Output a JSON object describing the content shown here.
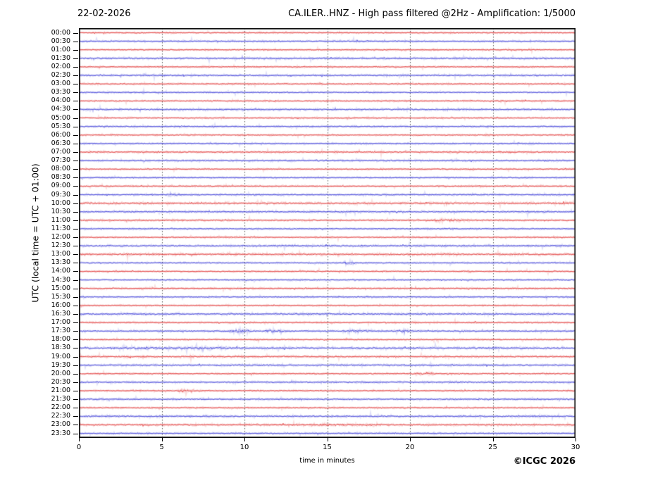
{
  "header": {
    "date": "22-02-2026",
    "title": "CA.ILER..HNZ - High pass filtered @2Hz - Amplification: 1/5000"
  },
  "footer": {
    "copyright": "©ICGC 2026"
  },
  "chart_data": {
    "type": "line",
    "subtype": "helicorder-daily-seismogram",
    "title": "CA.ILER..HNZ - High pass filtered @2Hz - Amplification: 1/5000",
    "date": "22-02-2026",
    "xlabel": "time in minutes",
    "ylabel": "UTC (local time = UTC + 01:00)",
    "x_range": [
      0,
      30
    ],
    "x_ticks": [
      0,
      5,
      10,
      15,
      20,
      25,
      30
    ],
    "grid": {
      "vertical_dotted_every_min": 5,
      "color": "#444444"
    },
    "legend": "none",
    "trace_colors": {
      "hour_rows": "#e03030",
      "half_hour_rows": "#3535d6"
    },
    "frame_color": "#000000",
    "rows": [
      {
        "t": "00:00",
        "color": "red",
        "noise": 1.0
      },
      {
        "t": "00:30",
        "color": "blue",
        "noise": 1.1
      },
      {
        "t": "01:00",
        "color": "red",
        "noise": 1.0
      },
      {
        "t": "01:30",
        "color": "blue",
        "noise": 1.3
      },
      {
        "t": "02:00",
        "color": "red",
        "noise": 1.0
      },
      {
        "t": "02:30",
        "color": "blue",
        "noise": 1.2
      },
      {
        "t": "03:00",
        "color": "red",
        "noise": 1.0
      },
      {
        "t": "03:30",
        "color": "blue",
        "noise": 1.0
      },
      {
        "t": "04:00",
        "color": "red",
        "noise": 1.0
      },
      {
        "t": "04:30",
        "color": "blue",
        "noise": 1.3
      },
      {
        "t": "05:00",
        "color": "red",
        "noise": 1.0
      },
      {
        "t": "05:30",
        "color": "blue",
        "noise": 1.1
      },
      {
        "t": "06:00",
        "color": "red",
        "noise": 1.0
      },
      {
        "t": "06:30",
        "color": "blue",
        "noise": 1.0
      },
      {
        "t": "07:00",
        "color": "red",
        "noise": 1.2
      },
      {
        "t": "07:30",
        "color": "blue",
        "noise": 1.2
      },
      {
        "t": "08:00",
        "color": "red",
        "noise": 1.0
      },
      {
        "t": "08:30",
        "color": "blue",
        "noise": 1.0
      },
      {
        "t": "09:00",
        "color": "red",
        "noise": 1.1
      },
      {
        "t": "09:30",
        "color": "blue",
        "noise": 1.2
      },
      {
        "t": "10:00",
        "color": "red",
        "noise": 1.5
      },
      {
        "t": "10:30",
        "color": "blue",
        "noise": 1.3
      },
      {
        "t": "11:00",
        "color": "red",
        "noise": 1.2
      },
      {
        "t": "11:30",
        "color": "blue",
        "noise": 1.0
      },
      {
        "t": "12:00",
        "color": "red",
        "noise": 1.0
      },
      {
        "t": "12:30",
        "color": "blue",
        "noise": 1.4
      },
      {
        "t": "13:00",
        "color": "red",
        "noise": 1.5
      },
      {
        "t": "13:30",
        "color": "blue",
        "noise": 1.0
      },
      {
        "t": "14:00",
        "color": "red",
        "noise": 1.0
      },
      {
        "t": "14:30",
        "color": "blue",
        "noise": 1.0
      },
      {
        "t": "15:00",
        "color": "red",
        "noise": 1.1
      },
      {
        "t": "15:30",
        "color": "blue",
        "noise": 1.0
      },
      {
        "t": "16:00",
        "color": "red",
        "noise": 1.0
      },
      {
        "t": "16:30",
        "color": "blue",
        "noise": 1.4
      },
      {
        "t": "17:00",
        "color": "red",
        "noise": 1.1
      },
      {
        "t": "17:30",
        "color": "blue",
        "noise": 1.2
      },
      {
        "t": "18:00",
        "color": "red",
        "noise": 1.0
      },
      {
        "t": "18:30",
        "color": "blue",
        "noise": 1.5
      },
      {
        "t": "19:00",
        "color": "red",
        "noise": 1.3
      },
      {
        "t": "19:30",
        "color": "blue",
        "noise": 1.3
      },
      {
        "t": "20:00",
        "color": "red",
        "noise": 1.0
      },
      {
        "t": "20:30",
        "color": "blue",
        "noise": 1.2
      },
      {
        "t": "21:00",
        "color": "red",
        "noise": 1.0
      },
      {
        "t": "21:30",
        "color": "blue",
        "noise": 1.2
      },
      {
        "t": "22:00",
        "color": "red",
        "noise": 1.0
      },
      {
        "t": "22:30",
        "color": "blue",
        "noise": 1.3
      },
      {
        "t": "23:00",
        "color": "red",
        "noise": 1.3
      },
      {
        "t": "23:30",
        "color": "blue",
        "noise": 1.0
      }
    ],
    "events": [
      {
        "row": "09:30",
        "start_min": 5.5,
        "end_min": 6.1,
        "amp": 2.2
      },
      {
        "row": "11:00",
        "start_min": 21.5,
        "end_min": 23.5,
        "amp": 1.8
      },
      {
        "row": "13:30",
        "start_min": 16.1,
        "end_min": 16.5,
        "amp": 3.0
      },
      {
        "row": "17:30",
        "start_min": 9.3,
        "end_min": 10.2,
        "amp": 3.0
      },
      {
        "row": "17:30",
        "start_min": 11.5,
        "end_min": 12.2,
        "amp": 2.4
      },
      {
        "row": "17:30",
        "start_min": 16.3,
        "end_min": 17.6,
        "amp": 2.0
      },
      {
        "row": "17:30",
        "start_min": 19.2,
        "end_min": 19.9,
        "amp": 2.2
      },
      {
        "row": "18:30",
        "start_min": 2.0,
        "end_min": 9.0,
        "amp": 1.5
      },
      {
        "row": "20:00",
        "start_min": 20.1,
        "end_min": 21.4,
        "amp": 2.0
      },
      {
        "row": "21:00",
        "start_min": 6.2,
        "end_min": 6.8,
        "amp": 3.0
      },
      {
        "row": "23:00",
        "start_min": 13.0,
        "end_min": 18.0,
        "amp": 1.4
      }
    ]
  }
}
